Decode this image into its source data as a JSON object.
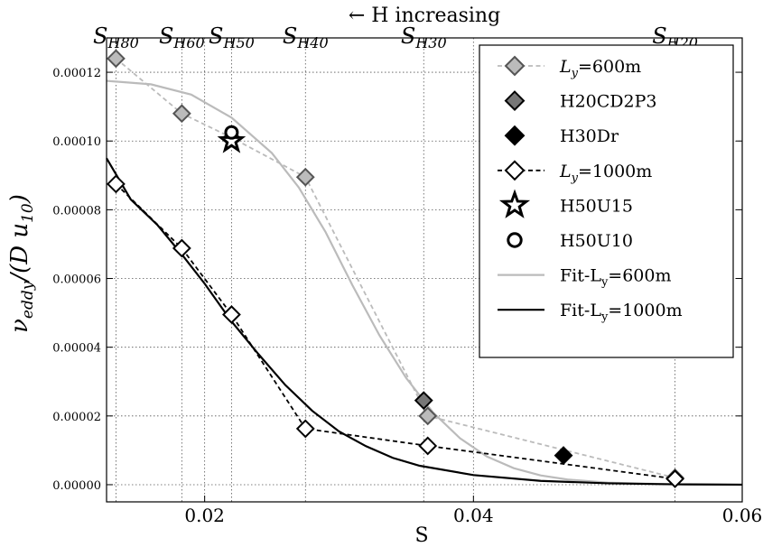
{
  "chart_data": {
    "type": "line",
    "xlabel": "S",
    "ylabel": "ν_eddy/(D u10)",
    "xlim": [
      0.0127,
      0.06
    ],
    "ylim": [
      -5e-06,
      0.00013
    ],
    "x_ticks": [
      {
        "value": 0.02,
        "label": "0.02"
      },
      {
        "value": 0.04,
        "label": "0.04"
      },
      {
        "value": 0.06,
        "label": "0.06"
      }
    ],
    "y_ticks": [
      {
        "value": 0.0,
        "label": "0.00000"
      },
      {
        "value": 2e-05,
        "label": "0.00002"
      },
      {
        "value": 4e-05,
        "label": "0.00004"
      },
      {
        "value": 6e-05,
        "label": "0.00006"
      },
      {
        "value": 8e-05,
        "label": "0.00008"
      },
      {
        "value": 0.0001,
        "label": "0.00010"
      },
      {
        "value": 0.00012,
        "label": "0.00012"
      }
    ],
    "grid": true,
    "top_axis": {
      "annotation": "← H increasing",
      "ticks": [
        {
          "value": 0.0134,
          "main": "S",
          "sub": "H80"
        },
        {
          "value": 0.0183,
          "main": "S",
          "sub": "H60"
        },
        {
          "value": 0.022,
          "main": "S",
          "sub": "H50"
        },
        {
          "value": 0.0275,
          "main": "S",
          "sub": "H40"
        },
        {
          "value": 0.0363,
          "main": "S",
          "sub": "H30"
        },
        {
          "value": 0.055,
          "main": "S",
          "sub": "H20"
        }
      ]
    },
    "legend_position": "top-right",
    "series": [
      {
        "name": "L_y=600m",
        "legend_main": "L",
        "legend_sub": "y",
        "legend_rest": "=600m",
        "style": "dashed-line-diamond",
        "color": "#bbbbbb",
        "marker_fill": "#bbbbbb",
        "points": [
          [
            0.0134,
            0.000124
          ],
          [
            0.0183,
            0.000108
          ],
          [
            0.022,
            0.000101
          ],
          [
            0.0275,
            8.95e-05
          ],
          [
            0.0366,
            2e-05
          ],
          [
            0.055,
            2e-06
          ]
        ]
      },
      {
        "name": "H20CD2P3",
        "legend_main": "H20CD2P3",
        "style": "marker-diamond",
        "color": "#000000",
        "marker_fill": "#777777",
        "points": [
          [
            0.0363,
            2.45e-05
          ]
        ]
      },
      {
        "name": "H30Dr",
        "legend_main": "H30Dr",
        "style": "marker-diamond",
        "color": "#000000",
        "marker_fill": "#000000",
        "points": [
          [
            0.0467,
            8.5e-06
          ]
        ]
      },
      {
        "name": "L_y=1000m",
        "legend_main": "L",
        "legend_sub": "y",
        "legend_rest": "=1000m",
        "style": "dashed-line-diamond",
        "color": "#000000",
        "marker_fill": "#ffffff",
        "points": [
          [
            0.0134,
            8.75e-05
          ],
          [
            0.0183,
            6.88e-05
          ],
          [
            0.022,
            4.95e-05
          ],
          [
            0.0275,
            1.63e-05
          ],
          [
            0.0366,
            1.13e-05
          ],
          [
            0.055,
            1.7e-06
          ]
        ]
      },
      {
        "name": "H50U15",
        "legend_main": "H50U15",
        "style": "marker-star",
        "color": "#000000",
        "marker_fill": "#ffffff",
        "points": [
          [
            0.022,
            0.0001
          ]
        ]
      },
      {
        "name": "H50U10",
        "legend_main": "H50U10",
        "style": "marker-circle",
        "color": "#000000",
        "marker_fill": "#ffffff",
        "points": [
          [
            0.022,
            0.0001025
          ]
        ]
      },
      {
        "name": "Fit-L_y=600m",
        "legend_main": "Fit-L",
        "legend_sub": "y",
        "legend_rest": "=600m",
        "style": "solid-line",
        "color": "#bbbbbb",
        "points": [
          [
            0.0127,
            0.0001175
          ],
          [
            0.016,
            0.0001165
          ],
          [
            0.019,
            0.0001135
          ],
          [
            0.022,
            0.0001068
          ],
          [
            0.025,
            9.65e-05
          ],
          [
            0.027,
            8.65e-05
          ],
          [
            0.029,
            7.35e-05
          ],
          [
            0.031,
            5.8e-05
          ],
          [
            0.033,
            4.35e-05
          ],
          [
            0.035,
            3.1e-05
          ],
          [
            0.037,
            2.1e-05
          ],
          [
            0.039,
            1.35e-05
          ],
          [
            0.041,
            8.2e-06
          ],
          [
            0.043,
            4.8e-06
          ],
          [
            0.045,
            2.7e-06
          ],
          [
            0.047,
            1.5e-06
          ],
          [
            0.05,
            6e-07
          ],
          [
            0.055,
            1e-07
          ],
          [
            0.06,
            0.0
          ]
        ]
      },
      {
        "name": "Fit-L_y=1000m",
        "legend_main": "Fit-L",
        "legend_sub": "y",
        "legend_rest": "=1000m",
        "style": "solid-line",
        "color": "#000000",
        "points": [
          [
            0.0127,
            9.5e-05
          ],
          [
            0.0145,
            8.3e-05
          ],
          [
            0.0165,
            7.55e-05
          ],
          [
            0.0183,
            6.7e-05
          ],
          [
            0.02,
            5.85e-05
          ],
          [
            0.022,
            4.75e-05
          ],
          [
            0.024,
            3.8e-05
          ],
          [
            0.026,
            2.9e-05
          ],
          [
            0.028,
            2.15e-05
          ],
          [
            0.03,
            1.55e-05
          ],
          [
            0.032,
            1.12e-05
          ],
          [
            0.034,
            7.8e-06
          ],
          [
            0.036,
            5.5e-06
          ],
          [
            0.04,
            2.8e-06
          ],
          [
            0.045,
            1.1e-06
          ],
          [
            0.05,
            4e-07
          ],
          [
            0.055,
            1e-07
          ],
          [
            0.06,
            0.0
          ]
        ]
      }
    ]
  }
}
